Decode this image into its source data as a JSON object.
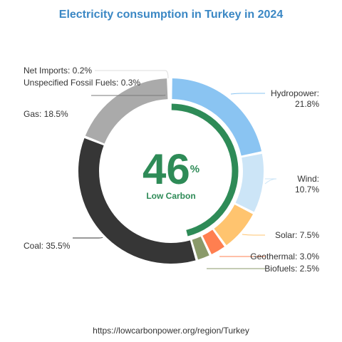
{
  "chart_data": {
    "type": "pie",
    "title": "Electricity consumption in Turkey in 2024",
    "center": {
      "value": "46",
      "unit": "%",
      "label": "Low Carbon",
      "fraction": 0.46,
      "color": "#2e8b57"
    },
    "slices": [
      {
        "name": "Hydropower",
        "value": 21.8,
        "label_line1": "Hydropower:",
        "label_line2": "21.8%",
        "color": "#8ac4f2"
      },
      {
        "name": "Wind",
        "value": 10.7,
        "label_line1": "Wind:",
        "label_line2": "10.7%",
        "color": "#cce5f7"
      },
      {
        "name": "Solar",
        "value": 7.5,
        "label_line1": "Solar: 7.5%",
        "label_line2": "",
        "color": "#ffc46f"
      },
      {
        "name": "Geothermal",
        "value": 3.0,
        "label_line1": "Geothermal: 3.0%",
        "label_line2": "",
        "color": "#ff7f50"
      },
      {
        "name": "Biofuels",
        "value": 2.5,
        "label_line1": "Biofuels: 2.5%",
        "label_line2": "",
        "color": "#8a9a6a"
      },
      {
        "name": "Coal",
        "value": 35.5,
        "label_line1": "Coal: 35.5%",
        "label_line2": "",
        "color": "#363636"
      },
      {
        "name": "Gas",
        "value": 18.5,
        "label_line1": "Gas: 18.5%",
        "label_line2": "",
        "color": "#aaaaaa"
      },
      {
        "name": "Unspecified Fossil Fuels",
        "value": 0.3,
        "label_line1": "Unspecified Fossil Fuels: 0.3%",
        "label_line2": "",
        "color": "#7a7a7a"
      },
      {
        "name": "Net Imports",
        "value": 0.2,
        "label_line1": "Net Imports: 0.2%",
        "label_line2": "",
        "color": "#dddddd"
      }
    ]
  },
  "footer": {
    "source": "https://lowcarbonpower.org/region/Turkey"
  }
}
